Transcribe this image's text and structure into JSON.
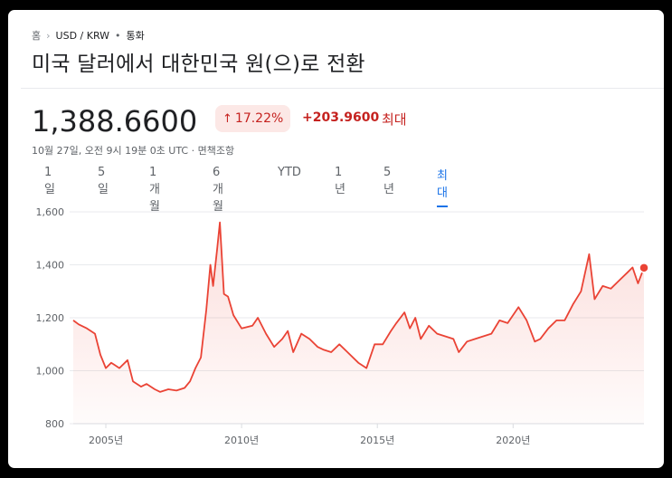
{
  "breadcrumb": {
    "home": "홈",
    "pair": "USD / KRW",
    "dot": "•",
    "category": "통화"
  },
  "title": "미국 달러에서 대한민국 원(으)로 전환",
  "quote": {
    "price": "1,388.6600",
    "pct_arrow": "↑",
    "pct_change": "17.22%",
    "abs_change": "+203.9600",
    "range": "최대",
    "timestamp": "10월 27일, 오전 9시 19분 0초 UTC · 면책조항"
  },
  "tabs": [
    {
      "label": "1일",
      "active": false
    },
    {
      "label": "5일",
      "active": false
    },
    {
      "label": "1개월",
      "active": false
    },
    {
      "label": "6개월",
      "active": false
    },
    {
      "label": "YTD",
      "active": false
    },
    {
      "label": "1년",
      "active": false
    },
    {
      "label": "5년",
      "active": false
    },
    {
      "label": "최대",
      "active": true
    }
  ],
  "colors": {
    "accent": "#1a73e8",
    "negative_red": "#c5221f",
    "line": "#ea4335"
  },
  "chart_data": {
    "type": "area",
    "ylim": [
      800,
      1600
    ],
    "yticks": [
      "800",
      "1,000",
      "1,200",
      "1,400",
      "1,600"
    ],
    "ytick_values": [
      800,
      1000,
      1200,
      1400,
      1600
    ],
    "xlim": [
      2003.8,
      2024.82
    ],
    "xticks": [
      "2005년",
      "2010년",
      "2015년",
      "2020년"
    ],
    "xtick_values": [
      2005,
      2010,
      2015,
      2020
    ],
    "grid": true,
    "series": [
      {
        "x": [
          2003.8,
          2004.0,
          2004.3,
          2004.6,
          2004.8,
          2005.0,
          2005.2,
          2005.5,
          2005.8,
          2006.0,
          2006.3,
          2006.5,
          2006.8,
          2007.0,
          2007.3,
          2007.6,
          2007.9,
          2008.1,
          2008.3,
          2008.5,
          2008.7,
          2008.85,
          2008.95,
          2009.1,
          2009.2,
          2009.35,
          2009.5,
          2009.7,
          2010.0,
          2010.4,
          2010.6,
          2010.9,
          2011.2,
          2011.5,
          2011.7,
          2011.9,
          2012.2,
          2012.5,
          2012.8,
          2013.0,
          2013.3,
          2013.6,
          2013.9,
          2014.3,
          2014.6,
          2014.9,
          2015.2,
          2015.5,
          2015.7,
          2016.0,
          2016.2,
          2016.4,
          2016.6,
          2016.9,
          2017.2,
          2017.5,
          2017.8,
          2018.0,
          2018.3,
          2018.6,
          2018.9,
          2019.2,
          2019.5,
          2019.8,
          2020.2,
          2020.5,
          2020.8,
          2021.0,
          2021.3,
          2021.6,
          2021.9,
          2022.2,
          2022.5,
          2022.8,
          2023.0,
          2023.3,
          2023.6,
          2023.9,
          2024.2,
          2024.4,
          2024.6,
          2024.82
        ],
        "y": [
          1190,
          1175,
          1160,
          1140,
          1060,
          1010,
          1030,
          1010,
          1040,
          960,
          940,
          950,
          930,
          920,
          930,
          925,
          935,
          960,
          1010,
          1050,
          1230,
          1400,
          1320,
          1460,
          1560,
          1290,
          1280,
          1210,
          1160,
          1170,
          1200,
          1140,
          1090,
          1120,
          1150,
          1070,
          1140,
          1120,
          1090,
          1080,
          1070,
          1100,
          1070,
          1030,
          1010,
          1100,
          1100,
          1150,
          1180,
          1220,
          1160,
          1200,
          1120,
          1170,
          1140,
          1130,
          1120,
          1070,
          1110,
          1120,
          1130,
          1140,
          1190,
          1180,
          1240,
          1190,
          1110,
          1120,
          1160,
          1190,
          1190,
          1250,
          1300,
          1440,
          1270,
          1320,
          1310,
          1340,
          1370,
          1390,
          1330,
          1388.66
        ]
      }
    ]
  }
}
